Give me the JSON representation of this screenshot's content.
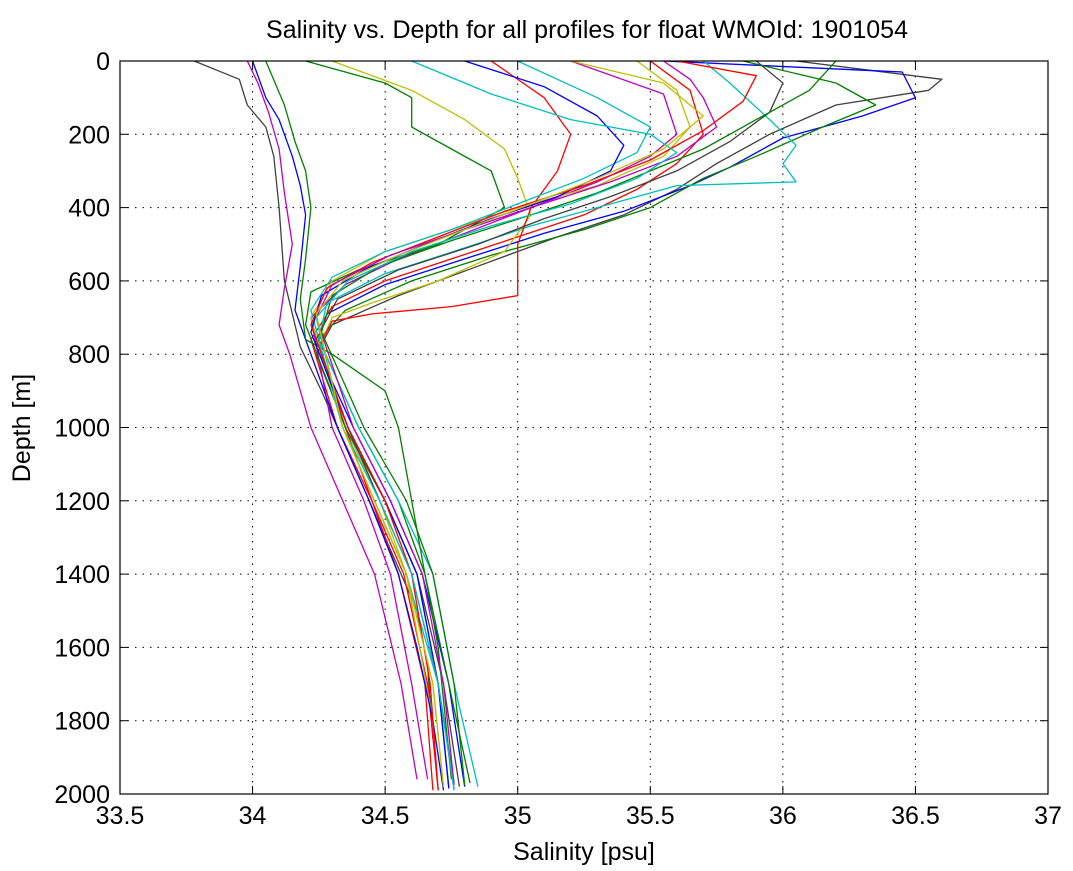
{
  "chart_data": {
    "type": "line",
    "title": "Salinity vs. Depth for all profiles for float WMOId: 1901054",
    "xlabel": "Salinity [psu]",
    "ylabel": "Depth [m]",
    "xlim": [
      33.5,
      37
    ],
    "ylim": [
      0,
      2000
    ],
    "y_reversed": true,
    "grid": true,
    "x_ticks": [
      33.5,
      34,
      34.5,
      35,
      35.5,
      36,
      36.5,
      37
    ],
    "x_tick_labels": [
      "33.5",
      "34",
      "34.5",
      "35",
      "35.5",
      "36",
      "36.5",
      "37"
    ],
    "y_ticks": [
      0,
      200,
      400,
      600,
      800,
      1000,
      1200,
      1400,
      1600,
      1800,
      2000
    ],
    "y_tick_labels": [
      "0",
      "200",
      "400",
      "600",
      "800",
      "1000",
      "1200",
      "1400",
      "1600",
      "1800",
      "2000"
    ],
    "colors": [
      "#0000ff",
      "#008000",
      "#ff0000",
      "#00bfbf",
      "#bf00bf",
      "#bfbf00",
      "#404040"
    ],
    "series": [
      {
        "color": "#404040",
        "x": [
          33.78,
          33.95,
          33.98,
          34.05,
          34.08,
          34.1,
          34.12,
          34.18,
          34.26,
          34.32,
          34.38,
          34.44,
          34.5,
          34.56,
          34.62,
          34.66,
          34.68
        ],
        "y": [
          0,
          50,
          120,
          180,
          260,
          400,
          600,
          780,
          900,
          1000,
          1100,
          1200,
          1300,
          1400,
          1500,
          1650,
          1850
        ]
      },
      {
        "color": "#404040",
        "x": [
          36.05,
          36.6,
          36.55,
          36.2,
          35.95,
          35.75,
          35.6,
          35.4,
          35.15,
          34.85,
          34.55,
          34.3,
          34.24,
          34.35,
          34.5,
          34.62,
          34.72,
          34.78
        ],
        "y": [
          0,
          50,
          80,
          120,
          200,
          280,
          350,
          420,
          480,
          560,
          640,
          720,
          800,
          1000,
          1200,
          1400,
          1700,
          1980
        ]
      },
      {
        "color": "#0000ff",
        "x": [
          35.55,
          36.45,
          36.5,
          36.3,
          36.0,
          35.8,
          35.65,
          35.4,
          35.1,
          34.8,
          34.5,
          34.28,
          34.24,
          34.38,
          34.52,
          34.64,
          34.74,
          34.8
        ],
        "y": [
          0,
          30,
          100,
          150,
          210,
          290,
          340,
          410,
          470,
          540,
          610,
          690,
          780,
          1000,
          1200,
          1400,
          1700,
          1980
        ]
      },
      {
        "color": "#008000",
        "x": [
          35.85,
          36.2,
          36.35,
          36.15,
          35.9,
          35.7,
          35.5,
          35.25,
          34.9,
          34.6,
          34.35,
          34.25,
          34.4,
          34.55,
          34.65,
          34.74,
          34.82
        ],
        "y": [
          0,
          60,
          120,
          180,
          260,
          320,
          400,
          460,
          530,
          600,
          680,
          760,
          1000,
          1200,
          1400,
          1700,
          1970
        ]
      },
      {
        "color": "#ff0000",
        "x": [
          35.5,
          35.65,
          35.7,
          35.6,
          35.45,
          35.25,
          35.0,
          34.75,
          34.5,
          34.3,
          34.22,
          34.32,
          34.45,
          34.57,
          34.66,
          34.7
        ],
        "y": [
          0,
          80,
          200,
          280,
          350,
          420,
          480,
          540,
          600,
          670,
          760,
          1000,
          1200,
          1400,
          1700,
          1990
        ]
      },
      {
        "color": "#00bfbf",
        "x": [
          35.7,
          35.8,
          35.95,
          36.05,
          36.0,
          36.05,
          35.6,
          35.3,
          35.05,
          34.8,
          34.5,
          34.28,
          34.25,
          34.4,
          34.55,
          34.68,
          34.76,
          34.85
        ],
        "y": [
          0,
          60,
          160,
          230,
          280,
          330,
          340,
          400,
          450,
          510,
          580,
          660,
          760,
          1000,
          1200,
          1400,
          1700,
          1980
        ]
      },
      {
        "color": "#bf00bf",
        "x": [
          35.2,
          35.55,
          35.6,
          35.5,
          35.3,
          35.05,
          34.8,
          34.55,
          34.35,
          34.22,
          34.3,
          34.42,
          34.52,
          34.6,
          34.66
        ],
        "y": [
          0,
          90,
          200,
          260,
          330,
          400,
          470,
          540,
          610,
          700,
          1000,
          1200,
          1400,
          1700,
          1960
        ]
      },
      {
        "color": "#bfbf00",
        "x": [
          34.3,
          34.6,
          34.8,
          34.95,
          35.0,
          35.05,
          34.95,
          34.7,
          34.45,
          34.3,
          34.25,
          34.35,
          34.48,
          34.58,
          34.68
        ],
        "y": [
          0,
          80,
          160,
          240,
          320,
          420,
          520,
          600,
          660,
          700,
          780,
          1000,
          1200,
          1400,
          1800
        ]
      },
      {
        "color": "#ff0000",
        "x": [
          34.9,
          35.1,
          35.2,
          35.15,
          35.05,
          35.0,
          35.0,
          34.75,
          34.45,
          34.3,
          34.25,
          34.35,
          34.45,
          34.55,
          34.65,
          34.68
        ],
        "y": [
          0,
          100,
          200,
          300,
          400,
          500,
          640,
          670,
          690,
          710,
          780,
          1000,
          1200,
          1400,
          1700,
          1990
        ]
      },
      {
        "color": "#008000",
        "x": [
          34.2,
          34.5,
          34.6,
          34.6,
          34.75,
          34.9,
          34.95,
          34.7,
          34.4,
          34.22,
          34.2,
          34.35,
          34.5,
          34.62,
          34.7,
          34.76
        ],
        "y": [
          0,
          60,
          100,
          180,
          240,
          300,
          400,
          500,
          570,
          630,
          720,
          1000,
          1200,
          1400,
          1700,
          1970
        ]
      },
      {
        "color": "#0000ff",
        "x": [
          34.0,
          34.05,
          34.1,
          34.12,
          34.15,
          34.18,
          34.2,
          34.18,
          34.16,
          34.22,
          34.32,
          34.44,
          34.55,
          34.62,
          34.68,
          34.72
        ],
        "y": [
          0,
          100,
          160,
          200,
          260,
          340,
          420,
          560,
          680,
          800,
          1000,
          1200,
          1400,
          1600,
          1800,
          1990
        ]
      },
      {
        "color": "#008000",
        "x": [
          34.05,
          34.12,
          34.16,
          34.2,
          34.22,
          34.2,
          34.18,
          34.2,
          34.3,
          34.5,
          34.55,
          34.6,
          34.7,
          34.75
        ],
        "y": [
          0,
          120,
          220,
          300,
          400,
          540,
          650,
          760,
          800,
          900,
          1000,
          1200,
          1600,
          1960
        ]
      },
      {
        "color": "#bf00bf",
        "x": [
          33.98,
          34.02,
          34.06,
          34.1,
          34.12,
          34.15,
          34.12,
          34.1,
          34.14,
          34.22,
          34.34,
          34.46,
          34.56,
          34.62
        ],
        "y": [
          0,
          60,
          140,
          240,
          360,
          500,
          620,
          720,
          800,
          1000,
          1200,
          1400,
          1700,
          1960
        ]
      },
      {
        "color": "#bfbf00",
        "x": [
          35.45,
          35.6,
          35.65,
          35.55,
          35.3,
          35.0,
          34.75,
          34.5,
          34.3,
          34.22,
          34.34,
          34.46,
          34.58,
          34.68,
          34.72
        ],
        "y": [
          0,
          80,
          180,
          260,
          340,
          400,
          460,
          520,
          600,
          700,
          1000,
          1200,
          1400,
          1700,
          1980
        ]
      },
      {
        "color": "#00bfbf",
        "x": [
          35.0,
          35.3,
          35.5,
          35.45,
          35.25,
          35.0,
          34.75,
          34.5,
          34.3,
          34.22,
          34.34,
          34.46,
          34.58,
          34.7,
          34.76
        ],
        "y": [
          0,
          100,
          180,
          250,
          320,
          390,
          460,
          520,
          590,
          680,
          1000,
          1200,
          1400,
          1700,
          1985
        ]
      },
      {
        "color": "#404040",
        "x": [
          35.9,
          36.0,
          35.95,
          35.8,
          35.6,
          35.35,
          35.1,
          34.85,
          34.55,
          34.32,
          34.24,
          34.36,
          34.48,
          34.6,
          34.7,
          34.74
        ],
        "y": [
          0,
          60,
          140,
          220,
          300,
          370,
          430,
          500,
          570,
          650,
          760,
          1000,
          1200,
          1400,
          1700,
          1980
        ]
      },
      {
        "color": "#0000ff",
        "x": [
          34.8,
          35.1,
          35.3,
          35.4,
          35.35,
          35.15,
          34.9,
          34.65,
          34.42,
          34.26,
          34.22,
          34.36,
          34.5,
          34.62,
          34.7,
          34.74
        ],
        "y": [
          0,
          70,
          150,
          230,
          300,
          370,
          430,
          500,
          570,
          640,
          740,
          1000,
          1200,
          1400,
          1700,
          1985
        ]
      },
      {
        "color": "#ff0000",
        "x": [
          35.6,
          35.9,
          35.85,
          35.7,
          35.5,
          35.25,
          34.95,
          34.7,
          34.45,
          34.28,
          34.22,
          34.36,
          34.5,
          34.6,
          34.67,
          34.7
        ],
        "y": [
          0,
          40,
          110,
          190,
          270,
          340,
          410,
          480,
          550,
          620,
          720,
          1000,
          1200,
          1400,
          1700,
          1990
        ]
      },
      {
        "color": "#bf00bf",
        "x": [
          35.55,
          35.65,
          35.7,
          35.75,
          35.6,
          35.35,
          35.05,
          34.8,
          34.52,
          34.3,
          34.24,
          34.38,
          34.52,
          34.64,
          34.72,
          34.76
        ],
        "y": [
          0,
          50,
          100,
          180,
          260,
          330,
          400,
          460,
          530,
          610,
          700,
          1000,
          1200,
          1400,
          1700,
          1975
        ]
      },
      {
        "color": "#008000",
        "x": [
          36.2,
          36.1,
          35.9,
          35.7,
          35.5,
          35.3,
          35.05,
          34.75,
          34.48,
          34.3,
          34.26,
          34.42,
          34.58,
          34.68,
          34.76,
          34.8
        ],
        "y": [
          0,
          80,
          160,
          240,
          300,
          360,
          420,
          490,
          560,
          640,
          740,
          1000,
          1200,
          1400,
          1700,
          1975
        ]
      },
      {
        "color": "#00bfbf",
        "x": [
          34.6,
          34.9,
          35.2,
          35.5,
          35.6,
          35.45,
          35.2,
          34.9,
          34.6,
          34.36,
          34.24,
          34.34,
          34.48,
          34.6,
          34.7,
          34.76
        ],
        "y": [
          0,
          90,
          160,
          200,
          250,
          320,
          390,
          450,
          520,
          600,
          700,
          1000,
          1200,
          1400,
          1700,
          1990
        ]
      },
      {
        "color": "#bfbf00",
        "x": [
          35.2,
          35.55,
          35.7,
          35.55,
          35.3,
          35.05,
          34.8,
          34.55,
          34.34,
          34.24,
          34.34,
          34.46,
          34.58,
          34.68,
          34.72
        ],
        "y": [
          0,
          60,
          150,
          240,
          320,
          390,
          460,
          530,
          600,
          690,
          1000,
          1200,
          1400,
          1700,
          1980
        ]
      }
    ]
  }
}
